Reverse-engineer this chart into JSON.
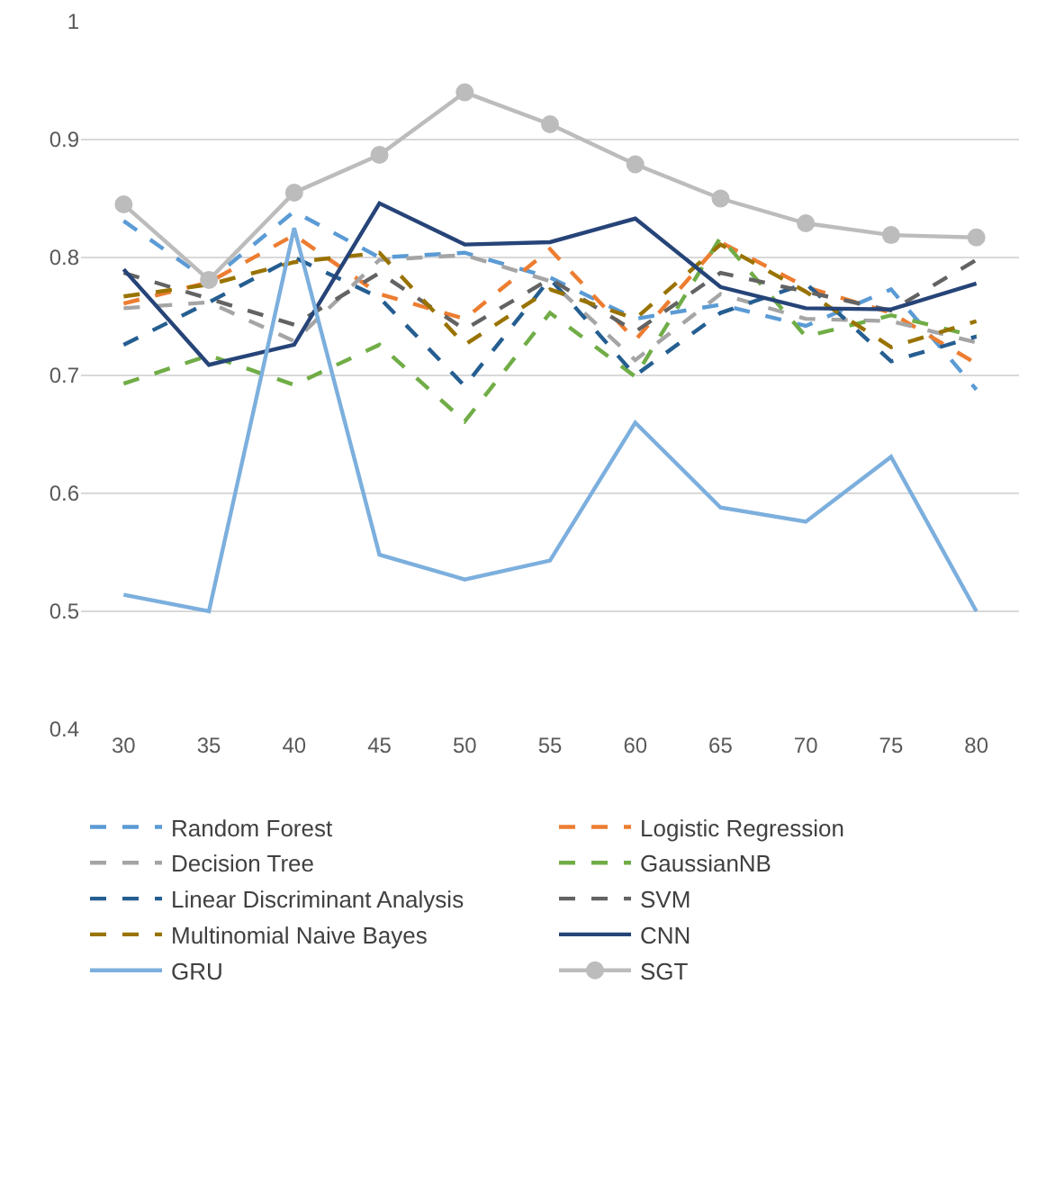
{
  "chart_data": {
    "type": "line",
    "x": [
      30,
      35,
      40,
      45,
      50,
      55,
      60,
      65,
      70,
      75,
      80
    ],
    "xlim": [
      27.5,
      82.5
    ],
    "xticks": [
      30,
      35,
      40,
      45,
      50,
      55,
      60,
      65,
      70,
      75,
      80
    ],
    "ylim": [
      0.4,
      1
    ],
    "yticks": [
      0.4,
      0.5,
      0.6,
      0.7,
      0.8,
      0.9,
      1
    ],
    "grid": "y",
    "legend": "bottom",
    "series": [
      {
        "name": "Random Forest",
        "color": "#5b9bd5",
        "line_style": "dashed",
        "marker": "none",
        "values": [
          0.831,
          0.78,
          0.839,
          0.8,
          0.804,
          0.783,
          0.748,
          0.76,
          0.742,
          0.773,
          0.688
        ]
      },
      {
        "name": "Logistic Regression",
        "color": "#ed7d31",
        "line_style": "dashed",
        "marker": "none",
        "values": [
          0.761,
          0.779,
          0.819,
          0.769,
          0.748,
          0.807,
          0.73,
          0.813,
          0.775,
          0.753,
          0.71
        ]
      },
      {
        "name": "Decision Tree",
        "color": "#a5a5a5",
        "line_style": "dashed",
        "marker": "none",
        "values": [
          0.757,
          0.762,
          0.729,
          0.798,
          0.802,
          0.78,
          0.713,
          0.769,
          0.748,
          0.746,
          0.728
        ]
      },
      {
        "name": "GaussianNB",
        "color": "#70ad47",
        "line_style": "dashed",
        "marker": "none",
        "values": [
          0.693,
          0.717,
          0.692,
          0.726,
          0.661,
          0.753,
          0.699,
          0.817,
          0.733,
          0.751,
          0.733
        ]
      },
      {
        "name": "Linear Discriminant Analysis",
        "color": "#255e91",
        "line_style": "dashed",
        "marker": "none",
        "values": [
          0.726,
          0.762,
          0.8,
          0.766,
          0.691,
          0.782,
          0.7,
          0.753,
          0.778,
          0.712,
          0.733
        ]
      },
      {
        "name": "SVM",
        "color": "#636363",
        "line_style": "dashed",
        "marker": "none",
        "values": [
          0.787,
          0.765,
          0.743,
          0.787,
          0.739,
          0.782,
          0.737,
          0.787,
          0.771,
          0.755,
          0.798
        ]
      },
      {
        "name": "Multinomial Naive Bayes",
        "color": "#997300",
        "line_style": "dashed",
        "marker": "none",
        "values": [
          0.767,
          0.777,
          0.796,
          0.804,
          0.726,
          0.773,
          0.748,
          0.811,
          0.771,
          0.724,
          0.746
        ]
      },
      {
        "name": "CNN",
        "color": "#264478",
        "line_style": "solid",
        "marker": "none",
        "values": [
          0.79,
          0.709,
          0.726,
          0.846,
          0.811,
          0.813,
          0.833,
          0.775,
          0.757,
          0.756,
          0.778
        ]
      },
      {
        "name": "GRU",
        "color": "#7cafdd",
        "line_style": "solid",
        "marker": "none",
        "values": [
          0.514,
          0.5,
          0.825,
          0.548,
          0.527,
          0.543,
          0.66,
          0.588,
          0.576,
          0.631,
          0.5
        ]
      },
      {
        "name": "SGT",
        "color": "#bcbcbc",
        "line_style": "solid",
        "marker": "circle",
        "values": [
          0.845,
          0.781,
          0.855,
          0.887,
          0.94,
          0.913,
          0.879,
          0.85,
          0.829,
          0.819,
          0.817
        ]
      }
    ]
  }
}
